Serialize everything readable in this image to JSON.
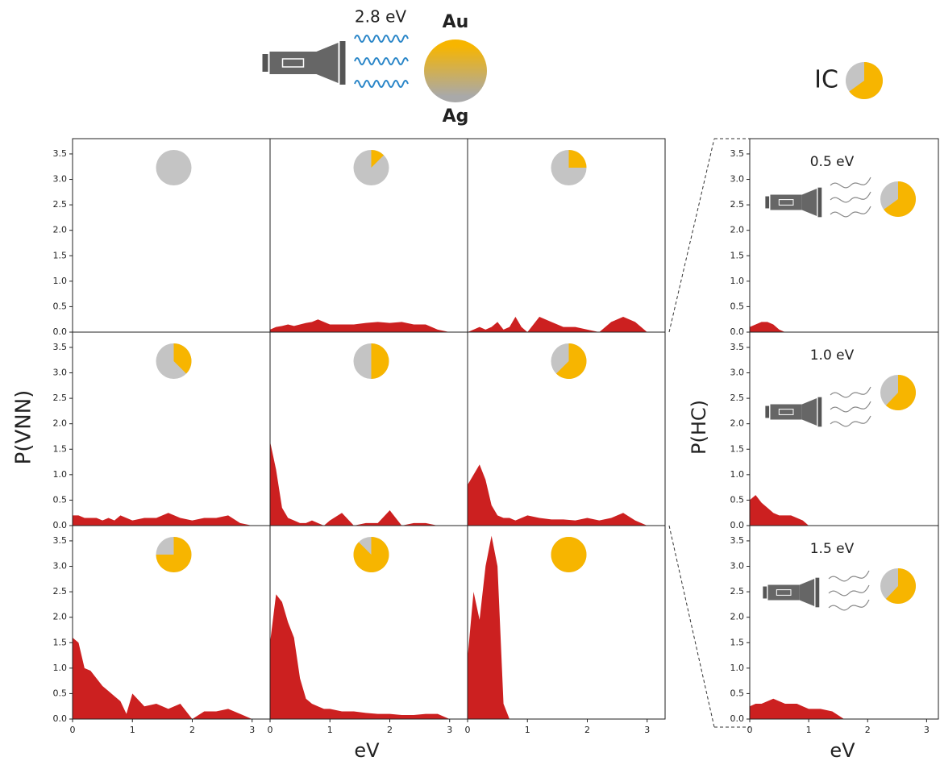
{
  "figure": {
    "excitation": "2.8 eV",
    "au": "Au",
    "ag": "Ag",
    "ic": "IC",
    "ic_au_fraction": 0.65,
    "y_label_left": "P(VNN)",
    "y_label_right": "P(HC)",
    "x_label_left": "eV",
    "x_label_right": "eV",
    "au_color": "#f7b500",
    "ag_color": "#c4c4c4"
  },
  "chart_data": [
    {
      "type": "area",
      "color": "#cc2020",
      "au_fraction": 0,
      "xlim": [
        0,
        3.3
      ],
      "ylim": [
        0,
        3.8
      ],
      "yticks": [
        {
          "value": 0,
          "label": "0.0"
        },
        {
          "value": 0.5,
          "label": "0.5"
        },
        {
          "value": 1,
          "label": "1.0"
        },
        {
          "value": 1.5,
          "label": "1.5"
        },
        {
          "value": 2,
          "label": "2.0"
        },
        {
          "value": 2.5,
          "label": "2.5"
        },
        {
          "value": 3,
          "label": "3.0"
        },
        {
          "value": 3.5,
          "label": "3.5"
        }
      ],
      "x": [
        0,
        0.1,
        0.2,
        0.3,
        0.4,
        0.5,
        0.6,
        0.7,
        0.8,
        0.9,
        1.0,
        1.2,
        1.4,
        1.6,
        1.8,
        2.0,
        2.2,
        2.4,
        2.6,
        2.8,
        3.0
      ],
      "values": [
        0,
        0,
        0,
        0,
        0,
        0,
        0,
        0,
        0,
        0,
        0,
        0,
        0,
        0,
        0,
        0,
        0,
        0,
        0,
        0,
        0
      ]
    },
    {
      "type": "area",
      "color": "#cc2020",
      "au_fraction": 0.125,
      "xlim": [
        0,
        3.3
      ],
      "ylim": [
        0,
        3.8
      ],
      "x": [
        0,
        0.1,
        0.2,
        0.3,
        0.4,
        0.5,
        0.6,
        0.7,
        0.8,
        0.9,
        1.0,
        1.2,
        1.4,
        1.6,
        1.8,
        2.0,
        2.2,
        2.4,
        2.6,
        2.8,
        3.0
      ],
      "values": [
        0.05,
        0.1,
        0.12,
        0.15,
        0.12,
        0.15,
        0.18,
        0.2,
        0.25,
        0.2,
        0.15,
        0.15,
        0.15,
        0.18,
        0.2,
        0.18,
        0.2,
        0.15,
        0.15,
        0.05,
        0
      ]
    },
    {
      "type": "area",
      "color": "#cc2020",
      "au_fraction": 0.25,
      "xlim": [
        0,
        3.3
      ],
      "ylim": [
        0,
        3.8
      ],
      "x": [
        0,
        0.1,
        0.2,
        0.3,
        0.4,
        0.5,
        0.6,
        0.7,
        0.8,
        0.9,
        1.0,
        1.2,
        1.4,
        1.6,
        1.8,
        2.0,
        2.2,
        2.4,
        2.6,
        2.8,
        3.0
      ],
      "values": [
        0,
        0.05,
        0.1,
        0.05,
        0.1,
        0.2,
        0.05,
        0.1,
        0.3,
        0.1,
        0,
        0.3,
        0.2,
        0.1,
        0.1,
        0.05,
        0,
        0.2,
        0.3,
        0.2,
        0
      ]
    },
    {
      "type": "area",
      "color": "#cc2020",
      "au_fraction": 0.375,
      "xlim": [
        0,
        3.3
      ],
      "ylim": [
        0,
        3.8
      ],
      "yticks": [
        {
          "value": 0,
          "label": "0.0"
        },
        {
          "value": 0.5,
          "label": "0.5"
        },
        {
          "value": 1,
          "label": "1.0"
        },
        {
          "value": 1.5,
          "label": "1.5"
        },
        {
          "value": 2,
          "label": "2.0"
        },
        {
          "value": 2.5,
          "label": "2.5"
        },
        {
          "value": 3,
          "label": "3.0"
        },
        {
          "value": 3.5,
          "label": "3.5"
        }
      ],
      "x": [
        0,
        0.1,
        0.2,
        0.3,
        0.4,
        0.5,
        0.6,
        0.7,
        0.8,
        0.9,
        1.0,
        1.2,
        1.4,
        1.6,
        1.8,
        2.0,
        2.2,
        2.4,
        2.6,
        2.8,
        3.0
      ],
      "values": [
        0.2,
        0.2,
        0.15,
        0.15,
        0.15,
        0.1,
        0.15,
        0.1,
        0.2,
        0.15,
        0.1,
        0.15,
        0.15,
        0.25,
        0.15,
        0.1,
        0.15,
        0.15,
        0.2,
        0.05,
        0
      ]
    },
    {
      "type": "area",
      "color": "#cc2020",
      "au_fraction": 0.5,
      "xlim": [
        0,
        3.3
      ],
      "ylim": [
        0,
        3.8
      ],
      "x": [
        0,
        0.1,
        0.2,
        0.3,
        0.4,
        0.5,
        0.6,
        0.7,
        0.8,
        0.9,
        1.0,
        1.2,
        1.4,
        1.6,
        1.8,
        2.0,
        2.2,
        2.4,
        2.6,
        2.8,
        3.0
      ],
      "values": [
        1.65,
        1.1,
        0.35,
        0.15,
        0.1,
        0.05,
        0.05,
        0.1,
        0.05,
        0,
        0.1,
        0.25,
        0,
        0.05,
        0.05,
        0.3,
        0,
        0.05,
        0.05,
        0,
        0
      ]
    },
    {
      "type": "area",
      "color": "#cc2020",
      "au_fraction": 0.625,
      "xlim": [
        0,
        3.3
      ],
      "ylim": [
        0,
        3.8
      ],
      "x": [
        0,
        0.1,
        0.2,
        0.3,
        0.4,
        0.5,
        0.6,
        0.7,
        0.8,
        0.9,
        1.0,
        1.2,
        1.4,
        1.6,
        1.8,
        2.0,
        2.2,
        2.4,
        2.6,
        2.8,
        3.0
      ],
      "values": [
        0.8,
        1.0,
        1.2,
        0.9,
        0.4,
        0.2,
        0.15,
        0.15,
        0.1,
        0.15,
        0.2,
        0.15,
        0.12,
        0.12,
        0.1,
        0.15,
        0.1,
        0.15,
        0.25,
        0.1,
        0
      ]
    },
    {
      "type": "area",
      "color": "#cc2020",
      "au_fraction": 0.75,
      "xlim": [
        0,
        3.3
      ],
      "ylim": [
        0,
        3.8
      ],
      "yticks": [
        {
          "value": 0,
          "label": "0.0"
        },
        {
          "value": 0.5,
          "label": "0.5"
        },
        {
          "value": 1,
          "label": "1.0"
        },
        {
          "value": 1.5,
          "label": "1.5"
        },
        {
          "value": 2,
          "label": "2.0"
        },
        {
          "value": 2.5,
          "label": "2.5"
        },
        {
          "value": 3,
          "label": "3.0"
        },
        {
          "value": 3.5,
          "label": "3.5"
        }
      ],
      "xticks": [
        0,
        1,
        2,
        3
      ],
      "x": [
        0,
        0.1,
        0.2,
        0.3,
        0.4,
        0.5,
        0.6,
        0.7,
        0.8,
        0.9,
        1.0,
        1.2,
        1.4,
        1.6,
        1.8,
        2.0,
        2.2,
        2.4,
        2.6,
        2.8,
        3.0
      ],
      "values": [
        1.6,
        1.5,
        1.0,
        0.95,
        0.8,
        0.65,
        0.55,
        0.45,
        0.35,
        0.1,
        0.5,
        0.25,
        0.3,
        0.2,
        0.3,
        0,
        0.15,
        0.15,
        0.2,
        0.1,
        0
      ]
    },
    {
      "type": "area",
      "color": "#cc2020",
      "au_fraction": 0.875,
      "xlim": [
        0,
        3.3
      ],
      "ylim": [
        0,
        3.8
      ],
      "xticks": [
        0,
        1,
        2,
        3
      ],
      "x": [
        0,
        0.1,
        0.2,
        0.3,
        0.4,
        0.5,
        0.6,
        0.7,
        0.8,
        0.9,
        1.0,
        1.2,
        1.4,
        1.6,
        1.8,
        2.0,
        2.2,
        2.4,
        2.6,
        2.8,
        3.0
      ],
      "values": [
        1.5,
        2.45,
        2.3,
        1.9,
        1.6,
        0.8,
        0.4,
        0.3,
        0.25,
        0.2,
        0.2,
        0.15,
        0.15,
        0.12,
        0.1,
        0.1,
        0.08,
        0.08,
        0.1,
        0.1,
        0
      ]
    },
    {
      "type": "area",
      "color": "#cc2020",
      "au_fraction": 1,
      "xlim": [
        0,
        3.3
      ],
      "ylim": [
        0,
        3.8
      ],
      "xticks": [
        0,
        1,
        2,
        3
      ],
      "x": [
        0,
        0.1,
        0.2,
        0.3,
        0.4,
        0.5,
        0.6,
        0.7,
        0.8,
        0.9,
        1.0,
        1.2,
        1.4,
        1.6,
        1.8,
        2.0,
        2.2,
        2.4,
        2.6,
        2.8,
        3.0
      ],
      "values": [
        1.2,
        2.5,
        1.95,
        3.0,
        3.6,
        3.0,
        0.3,
        0,
        0,
        0,
        0,
        0,
        0,
        0,
        0,
        0,
        0,
        0,
        0,
        0,
        0
      ]
    },
    {
      "type": "area",
      "color": "#cc2020",
      "title": "0.5 eV",
      "au_fraction": 0.65,
      "xlim": [
        0,
        3.2
      ],
      "ylim": [
        0,
        3.8
      ],
      "yticks": [
        {
          "value": 0,
          "label": "0.0"
        },
        {
          "value": 0.5,
          "label": "0.5"
        },
        {
          "value": 1,
          "label": "1.0"
        },
        {
          "value": 1.5,
          "label": "1.5"
        },
        {
          "value": 2,
          "label": "2.0"
        },
        {
          "value": 2.5,
          "label": "2.5"
        },
        {
          "value": 3,
          "label": "3.0"
        },
        {
          "value": 3.5,
          "label": "3.5"
        }
      ],
      "x": [
        0,
        0.1,
        0.2,
        0.3,
        0.4,
        0.5,
        0.6,
        0.7,
        0.8,
        0.9,
        1.0,
        1.2,
        1.4,
        1.6,
        1.8,
        2.0,
        2.2,
        2.4,
        2.6,
        2.8,
        3.0
      ],
      "values": [
        0.1,
        0.15,
        0.2,
        0.2,
        0.15,
        0.05,
        0,
        0,
        0,
        0,
        0,
        0,
        0,
        0,
        0,
        0,
        0,
        0,
        0,
        0,
        0
      ]
    },
    {
      "type": "area",
      "color": "#cc2020",
      "title": "1.0 eV",
      "au_fraction": 0.62,
      "xlim": [
        0,
        3.2
      ],
      "ylim": [
        0,
        3.8
      ],
      "yticks": [
        {
          "value": 0,
          "label": "0.0"
        },
        {
          "value": 0.5,
          "label": "0.5"
        },
        {
          "value": 1,
          "label": "1.0"
        },
        {
          "value": 1.5,
          "label": "1.5"
        },
        {
          "value": 2,
          "label": "2.0"
        },
        {
          "value": 2.5,
          "label": "2.5"
        },
        {
          "value": 3,
          "label": "3.0"
        },
        {
          "value": 3.5,
          "label": "3.5"
        }
      ],
      "x": [
        0,
        0.1,
        0.2,
        0.3,
        0.4,
        0.5,
        0.6,
        0.7,
        0.8,
        0.9,
        1.0,
        1.2,
        1.4,
        1.6,
        1.8,
        2.0,
        2.2,
        2.4,
        2.6,
        2.8,
        3.0
      ],
      "values": [
        0.5,
        0.6,
        0.45,
        0.35,
        0.25,
        0.2,
        0.2,
        0.2,
        0.15,
        0.1,
        0,
        0,
        0,
        0,
        0,
        0,
        0,
        0,
        0,
        0,
        0
      ]
    },
    {
      "type": "area",
      "color": "#cc2020",
      "title": "1.5 eV",
      "au_fraction": 0.62,
      "xlim": [
        0,
        3.2
      ],
      "ylim": [
        0,
        3.8
      ],
      "yticks": [
        {
          "value": 0,
          "label": "0.0"
        },
        {
          "value": 0.5,
          "label": "0.5"
        },
        {
          "value": 1,
          "label": "1.0"
        },
        {
          "value": 1.5,
          "label": "1.5"
        },
        {
          "value": 2,
          "label": "2.0"
        },
        {
          "value": 2.5,
          "label": "2.5"
        },
        {
          "value": 3,
          "label": "3.0"
        },
        {
          "value": 3.5,
          "label": "3.5"
        }
      ],
      "xticks": [
        0,
        1,
        2,
        3
      ],
      "x": [
        0,
        0.1,
        0.2,
        0.3,
        0.4,
        0.5,
        0.6,
        0.7,
        0.8,
        0.9,
        1.0,
        1.2,
        1.4,
        1.6,
        1.8,
        2.0,
        2.2,
        2.4,
        2.6,
        2.8,
        3.0
      ],
      "values": [
        0.25,
        0.3,
        0.3,
        0.35,
        0.4,
        0.35,
        0.3,
        0.3,
        0.3,
        0.25,
        0.2,
        0.2,
        0.15,
        0,
        0,
        0,
        0,
        0,
        0,
        0,
        0
      ]
    }
  ]
}
